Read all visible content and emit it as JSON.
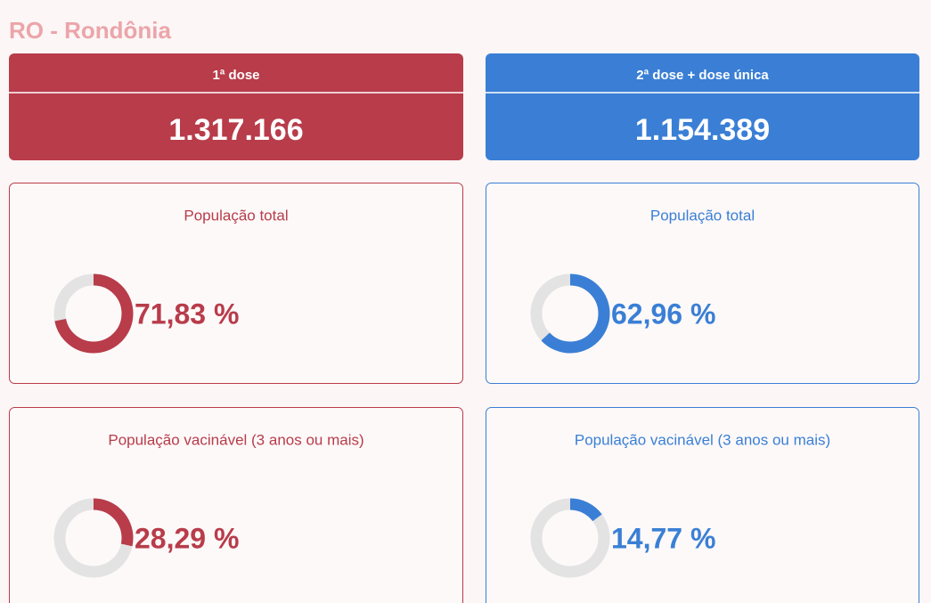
{
  "header": {
    "title": "RO - Rondônia"
  },
  "columns": [
    {
      "label": "1ª dose",
      "total": "1.317.166",
      "color": "#b83c4a",
      "cards": [
        {
          "title": "População total",
          "value": 71.83,
          "value_label": "71,83 %"
        },
        {
          "title": "População vacinável (3 anos ou mais)",
          "value": 28.29,
          "value_label": "28,29 %"
        }
      ]
    },
    {
      "label": "2ª dose + dose única",
      "total": "1.154.389",
      "color": "#3a7fd5",
      "cards": [
        {
          "title": "População total",
          "value": 62.96,
          "value_label": "62,96 %"
        },
        {
          "title": "População vacinável (3 anos ou mais)",
          "value": 14.77,
          "value_label": "14,77 %"
        }
      ]
    }
  ]
}
